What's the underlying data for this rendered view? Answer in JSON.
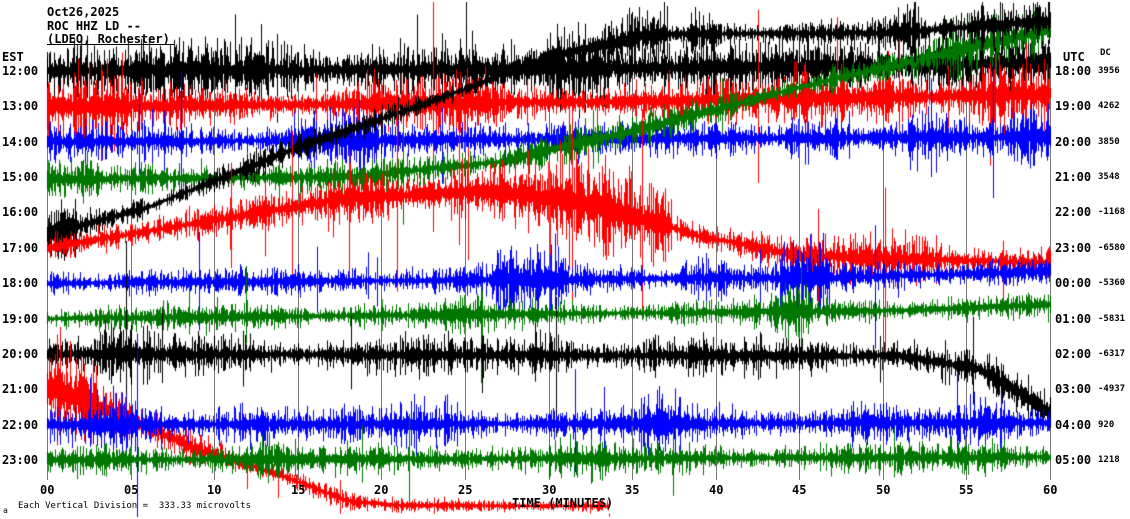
{
  "header": {
    "date": "Oct26,2025",
    "station": "ROC HHZ LD --",
    "location": "(LDEO, Rochester)"
  },
  "axes": {
    "left_label": "EST",
    "right_label": "UTC",
    "dc_label": "DC",
    "x_label": "TIME (MINUTES)",
    "x_ticks": [
      "00",
      "05",
      "10",
      "15",
      "20",
      "25",
      "30",
      "35",
      "40",
      "45",
      "50",
      "55",
      "60"
    ]
  },
  "footer": {
    "scale_note": "Each Vertical Division =  333.33 microvolts",
    "corner_mark": "a"
  },
  "colors": {
    "background": "#ffffff",
    "grid": "#787878",
    "text": "#000000",
    "trace_black": "#000000",
    "trace_red": "#ff0000",
    "trace_blue": "#0000ff",
    "trace_green": "#007700"
  },
  "chart_data": {
    "type": "line",
    "title": "ROC HHZ LD -- (LDEO, Rochester) helicorder, Oct26,2025",
    "xlabel": "TIME (MINUTES)",
    "x_range": [
      0,
      60
    ],
    "x_tick_step_minutes": 5,
    "left_time_axis": "EST",
    "right_time_axis": "UTC",
    "vertical_division_microvolts": 333.33,
    "grid": true,
    "rows": [
      {
        "est": "12:00",
        "utc": "18:00",
        "dc": "3956",
        "color": "#000000",
        "amp": 15,
        "drift": [
          [
            0,
            0
          ],
          [
            0.5,
            -2
          ],
          [
            0.9,
            -6
          ],
          [
            1,
            -9
          ]
        ],
        "bursts": [
          [
            0,
            0.04,
            1.4
          ],
          [
            0.5,
            0.56,
            1.8
          ],
          [
            0.86,
            0.9,
            1.5
          ]
        ]
      },
      {
        "est": "13:00",
        "utc": "19:00",
        "dc": "4262",
        "color": "#ff0000",
        "amp": 11,
        "drift": [
          [
            0,
            0
          ],
          [
            0.6,
            -5
          ],
          [
            1,
            -12
          ]
        ],
        "bursts": [
          [
            0,
            0.08,
            2.0
          ],
          [
            0.3,
            0.45,
            1.4
          ],
          [
            0.74,
            0.86,
            1.8
          ],
          [
            0.93,
            1,
            1.5
          ]
        ]
      },
      {
        "est": "14:00",
        "utc": "20:00",
        "dc": "3850",
        "color": "#0000ff",
        "amp": 9,
        "drift": [
          [
            0,
            0
          ],
          [
            1,
            -5
          ]
        ],
        "bursts": [
          [
            0.24,
            0.33,
            1.9
          ],
          [
            0.49,
            0.53,
            1.5
          ],
          [
            0.74,
            0.8,
            1.9
          ],
          [
            0.86,
            0.9,
            1.6
          ],
          [
            0.96,
            1,
            2.0
          ]
        ]
      },
      {
        "est": "15:00",
        "utc": "21:00",
        "dc": "3548",
        "color": "#007700",
        "amp": 8,
        "drift": [
          [
            0,
            2
          ],
          [
            0.3,
            0
          ],
          [
            0.45,
            -15
          ],
          [
            0.6,
            -50
          ],
          [
            0.75,
            -90
          ],
          [
            0.9,
            -125
          ],
          [
            1,
            -147
          ]
        ],
        "bursts": [
          [
            0,
            0.05,
            1.3
          ],
          [
            0.45,
            0.55,
            1.5
          ],
          [
            0.9,
            1,
            1.8
          ]
        ]
      },
      {
        "est": "16:00",
        "utc": "22:00",
        "dc": "-1168",
        "color": "#000000",
        "amp": 7,
        "drift": [
          [
            0,
            22
          ],
          [
            0.1,
            -5
          ],
          [
            0.25,
            -65
          ],
          [
            0.38,
            -110
          ],
          [
            0.5,
            -155
          ],
          [
            0.6,
            -178
          ],
          [
            0.85,
            -180
          ],
          [
            1,
            -192
          ]
        ],
        "bursts": [
          [
            0,
            0.03,
            2.0
          ],
          [
            0.55,
            0.62,
            2.0
          ],
          [
            0.64,
            0.67,
            1.8
          ],
          [
            0.84,
            0.87,
            2.0
          ],
          [
            0.92,
            1,
            2.4
          ]
        ]
      },
      {
        "est": "17:00",
        "utc": "23:00",
        "dc": "-6580",
        "color": "#ff0000",
        "amp": 9,
        "drift": [
          [
            0,
            0
          ],
          [
            0.15,
            -25
          ],
          [
            0.3,
            -50
          ],
          [
            0.45,
            -57
          ],
          [
            0.55,
            -42
          ],
          [
            0.65,
            -12
          ],
          [
            0.75,
            8
          ],
          [
            1,
            15
          ]
        ],
        "bursts": [
          [
            0.28,
            0.5,
            2.0
          ],
          [
            0.5,
            0.62,
            2.6
          ],
          [
            0.8,
            0.88,
            1.5
          ]
        ]
      },
      {
        "est": "18:00",
        "utc": "00:00",
        "dc": "-5360",
        "color": "#0000ff",
        "amp": 8,
        "drift": [
          [
            0,
            0
          ],
          [
            0.8,
            -6
          ],
          [
            1,
            -12
          ]
        ],
        "bursts": [
          [
            0.44,
            0.52,
            2.2
          ],
          [
            0.63,
            0.68,
            1.8
          ],
          [
            0.73,
            0.78,
            2.4
          ]
        ]
      },
      {
        "est": "19:00",
        "utc": "01:00",
        "dc": "-5831",
        "color": "#007700",
        "amp": 7,
        "drift": [
          [
            0,
            0
          ],
          [
            0.85,
            -8
          ],
          [
            1,
            -14
          ]
        ],
        "bursts": [
          [
            0.3,
            0.34,
            1.4
          ],
          [
            0.4,
            0.44,
            1.5
          ],
          [
            0.72,
            0.76,
            2.0
          ]
        ]
      },
      {
        "est": "20:00",
        "utc": "02:00",
        "dc": "-6317",
        "color": "#000000",
        "amp": 10,
        "drift": [
          [
            0,
            0
          ],
          [
            0.85,
            2
          ],
          [
            0.93,
            15
          ],
          [
            1,
            58
          ]
        ],
        "bursts": [
          [
            0.05,
            0.1,
            1.5
          ],
          [
            0.48,
            0.53,
            1.5
          ]
        ]
      },
      {
        "est": "21:00",
        "utc": "03:00",
        "dc": "-4937",
        "color": "#ff0000",
        "amp": 14,
        "ampPts": [
          [
            0,
            16
          ],
          [
            0.1,
            10
          ],
          [
            0.25,
            6
          ],
          [
            0.32,
            4
          ],
          [
            1,
            4
          ]
        ],
        "drift": [
          [
            0,
            -3
          ],
          [
            0.08,
            30
          ],
          [
            0.15,
            60
          ],
          [
            0.23,
            85
          ],
          [
            0.3,
            112
          ],
          [
            0.35,
            116
          ],
          [
            0.56,
            117
          ],
          [
            0.57,
            400
          ],
          [
            1,
            400
          ]
        ],
        "bursts": [
          [
            0,
            0.05,
            1.8
          ]
        ]
      },
      {
        "est": "22:00",
        "utc": "04:00",
        "dc": "920",
        "color": "#0000ff",
        "amp": 9,
        "drift": [
          [
            0,
            0
          ],
          [
            1,
            -2
          ]
        ],
        "bursts": [
          [
            0.04,
            0.09,
            2.0
          ],
          [
            0.17,
            0.22,
            1.7
          ],
          [
            0.35,
            0.4,
            1.5
          ],
          [
            0.59,
            0.64,
            1.8
          ],
          [
            0.8,
            0.84,
            1.4
          ],
          [
            0.92,
            0.96,
            1.4
          ]
        ]
      },
      {
        "est": "23:00",
        "utc": "05:00",
        "dc": "1218",
        "color": "#007700",
        "amp": 8,
        "drift": [
          [
            0,
            0
          ],
          [
            1,
            -3
          ]
        ],
        "bursts": [
          [
            0.2,
            0.26,
            1.4
          ],
          [
            0.5,
            0.56,
            1.4
          ],
          [
            0.9,
            0.96,
            1.4
          ]
        ]
      }
    ]
  }
}
